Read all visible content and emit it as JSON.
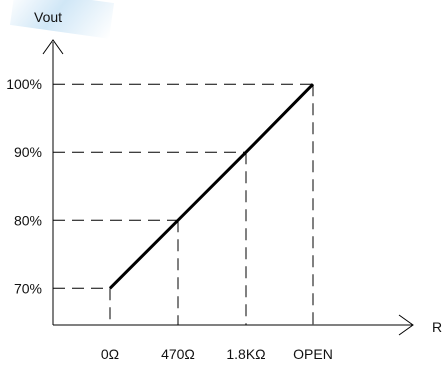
{
  "chart_data": {
    "type": "line",
    "ylabel": "Vout",
    "xlabel": "R",
    "categories": [
      "0Ω",
      "470Ω",
      "1.8KΩ",
      "OPEN"
    ],
    "y_ticks": [
      "70%",
      "80%",
      "90%",
      "100%"
    ],
    "series": [
      {
        "values": [
          70,
          80,
          90,
          100
        ]
      }
    ],
    "ylim": [
      64.6,
      106.5
    ],
    "grid": "dashed guide lines to each point",
    "colors": {
      "line": "#000000",
      "guide": "#000000"
    }
  }
}
